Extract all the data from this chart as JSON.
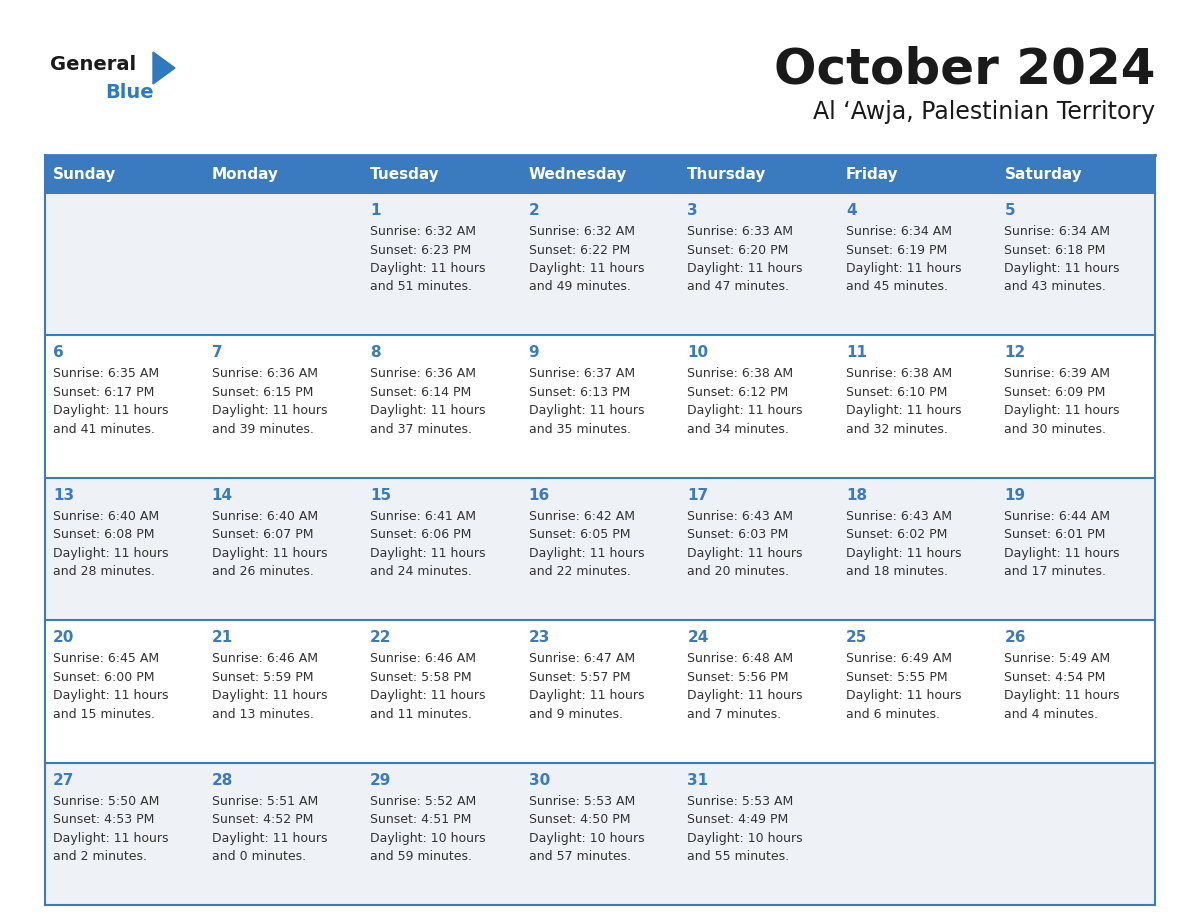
{
  "title": "October 2024",
  "subtitle": "Al ‘Awja, Palestinian Territory",
  "header_bg_color": "#3a7bbf",
  "header_text_color": "#ffffff",
  "row_bg_even": "#eef2f7",
  "row_bg_odd": "#ffffff",
  "border_color": "#3a7bbf",
  "day_headers": [
    "Sunday",
    "Monday",
    "Tuesday",
    "Wednesday",
    "Thursday",
    "Friday",
    "Saturday"
  ],
  "title_color": "#1a1a1a",
  "subtitle_color": "#1a1a1a",
  "day_number_color": "#3a7bbf",
  "cell_text_color": "#333333",
  "weeks": [
    {
      "days": [
        {
          "day": "",
          "sunrise": "",
          "sunset": "",
          "daylight_hours": "",
          "daylight_minutes": ""
        },
        {
          "day": "",
          "sunrise": "",
          "sunset": "",
          "daylight_hours": "",
          "daylight_minutes": ""
        },
        {
          "day": "1",
          "sunrise": "6:32 AM",
          "sunset": "6:23 PM",
          "daylight_hours": "11",
          "daylight_minutes": "51"
        },
        {
          "day": "2",
          "sunrise": "6:32 AM",
          "sunset": "6:22 PM",
          "daylight_hours": "11",
          "daylight_minutes": "49"
        },
        {
          "day": "3",
          "sunrise": "6:33 AM",
          "sunset": "6:20 PM",
          "daylight_hours": "11",
          "daylight_minutes": "47"
        },
        {
          "day": "4",
          "sunrise": "6:34 AM",
          "sunset": "6:19 PM",
          "daylight_hours": "11",
          "daylight_minutes": "45"
        },
        {
          "day": "5",
          "sunrise": "6:34 AM",
          "sunset": "6:18 PM",
          "daylight_hours": "11",
          "daylight_minutes": "43"
        }
      ]
    },
    {
      "days": [
        {
          "day": "6",
          "sunrise": "6:35 AM",
          "sunset": "6:17 PM",
          "daylight_hours": "11",
          "daylight_minutes": "41"
        },
        {
          "day": "7",
          "sunrise": "6:36 AM",
          "sunset": "6:15 PM",
          "daylight_hours": "11",
          "daylight_minutes": "39"
        },
        {
          "day": "8",
          "sunrise": "6:36 AM",
          "sunset": "6:14 PM",
          "daylight_hours": "11",
          "daylight_minutes": "37"
        },
        {
          "day": "9",
          "sunrise": "6:37 AM",
          "sunset": "6:13 PM",
          "daylight_hours": "11",
          "daylight_minutes": "35"
        },
        {
          "day": "10",
          "sunrise": "6:38 AM",
          "sunset": "6:12 PM",
          "daylight_hours": "11",
          "daylight_minutes": "34"
        },
        {
          "day": "11",
          "sunrise": "6:38 AM",
          "sunset": "6:10 PM",
          "daylight_hours": "11",
          "daylight_minutes": "32"
        },
        {
          "day": "12",
          "sunrise": "6:39 AM",
          "sunset": "6:09 PM",
          "daylight_hours": "11",
          "daylight_minutes": "30"
        }
      ]
    },
    {
      "days": [
        {
          "day": "13",
          "sunrise": "6:40 AM",
          "sunset": "6:08 PM",
          "daylight_hours": "11",
          "daylight_minutes": "28"
        },
        {
          "day": "14",
          "sunrise": "6:40 AM",
          "sunset": "6:07 PM",
          "daylight_hours": "11",
          "daylight_minutes": "26"
        },
        {
          "day": "15",
          "sunrise": "6:41 AM",
          "sunset": "6:06 PM",
          "daylight_hours": "11",
          "daylight_minutes": "24"
        },
        {
          "day": "16",
          "sunrise": "6:42 AM",
          "sunset": "6:05 PM",
          "daylight_hours": "11",
          "daylight_minutes": "22"
        },
        {
          "day": "17",
          "sunrise": "6:43 AM",
          "sunset": "6:03 PM",
          "daylight_hours": "11",
          "daylight_minutes": "20"
        },
        {
          "day": "18",
          "sunrise": "6:43 AM",
          "sunset": "6:02 PM",
          "daylight_hours": "11",
          "daylight_minutes": "18"
        },
        {
          "day": "19",
          "sunrise": "6:44 AM",
          "sunset": "6:01 PM",
          "daylight_hours": "11",
          "daylight_minutes": "17"
        }
      ]
    },
    {
      "days": [
        {
          "day": "20",
          "sunrise": "6:45 AM",
          "sunset": "6:00 PM",
          "daylight_hours": "11",
          "daylight_minutes": "15"
        },
        {
          "day": "21",
          "sunrise": "6:46 AM",
          "sunset": "5:59 PM",
          "daylight_hours": "11",
          "daylight_minutes": "13"
        },
        {
          "day": "22",
          "sunrise": "6:46 AM",
          "sunset": "5:58 PM",
          "daylight_hours": "11",
          "daylight_minutes": "11"
        },
        {
          "day": "23",
          "sunrise": "6:47 AM",
          "sunset": "5:57 PM",
          "daylight_hours": "11",
          "daylight_minutes": "9"
        },
        {
          "day": "24",
          "sunrise": "6:48 AM",
          "sunset": "5:56 PM",
          "daylight_hours": "11",
          "daylight_minutes": "7"
        },
        {
          "day": "25",
          "sunrise": "6:49 AM",
          "sunset": "5:55 PM",
          "daylight_hours": "11",
          "daylight_minutes": "6"
        },
        {
          "day": "26",
          "sunrise": "5:49 AM",
          "sunset": "4:54 PM",
          "daylight_hours": "11",
          "daylight_minutes": "4"
        }
      ]
    },
    {
      "days": [
        {
          "day": "27",
          "sunrise": "5:50 AM",
          "sunset": "4:53 PM",
          "daylight_hours": "11",
          "daylight_minutes": "2"
        },
        {
          "day": "28",
          "sunrise": "5:51 AM",
          "sunset": "4:52 PM",
          "daylight_hours": "11",
          "daylight_minutes": "0"
        },
        {
          "day": "29",
          "sunrise": "5:52 AM",
          "sunset": "4:51 PM",
          "daylight_hours": "10",
          "daylight_minutes": "59"
        },
        {
          "day": "30",
          "sunrise": "5:53 AM",
          "sunset": "4:50 PM",
          "daylight_hours": "10",
          "daylight_minutes": "57"
        },
        {
          "day": "31",
          "sunrise": "5:53 AM",
          "sunset": "4:49 PM",
          "daylight_hours": "10",
          "daylight_minutes": "55"
        },
        {
          "day": "",
          "sunrise": "",
          "sunset": "",
          "daylight_hours": "",
          "daylight_minutes": ""
        },
        {
          "day": "",
          "sunrise": "",
          "sunset": "",
          "daylight_hours": "",
          "daylight_minutes": ""
        }
      ]
    }
  ]
}
